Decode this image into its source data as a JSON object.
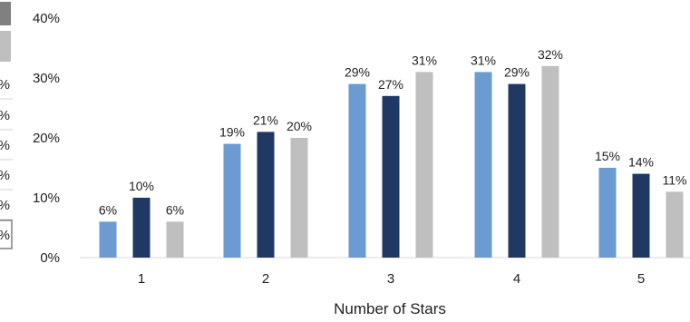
{
  "chart_data": {
    "type": "bar",
    "title": "",
    "xlabel": "Number of Stars",
    "ylabel": "",
    "ylim": [
      0,
      40
    ],
    "yticks": [
      "0%",
      "10%",
      "20%",
      "30%",
      "40%"
    ],
    "categories": [
      "1",
      "2",
      "3",
      "4",
      "5"
    ],
    "grid": false,
    "legend": "none",
    "series": [
      {
        "color": "#6B9BD1",
        "values": [
          6,
          19,
          29,
          31,
          15
        ],
        "labels": [
          "6%",
          "19%",
          "29%",
          "31%",
          "15%"
        ]
      },
      {
        "color": "#203864",
        "values": [
          10,
          21,
          27,
          29,
          14
        ],
        "labels": [
          "10%",
          "21%",
          "27%",
          "29%",
          "14%"
        ]
      },
      {
        "color": "#BFBFBF",
        "values": [
          6,
          20,
          31,
          32,
          11
        ],
        "labels": [
          "6%",
          "20%",
          "31%",
          "32%",
          "11%"
        ]
      }
    ]
  },
  "left_fragment": {
    "header_colors": [
      "#808080",
      "#BFBFBF"
    ],
    "cells": [
      "%",
      "%",
      "%",
      "%",
      "%",
      "%"
    ]
  }
}
